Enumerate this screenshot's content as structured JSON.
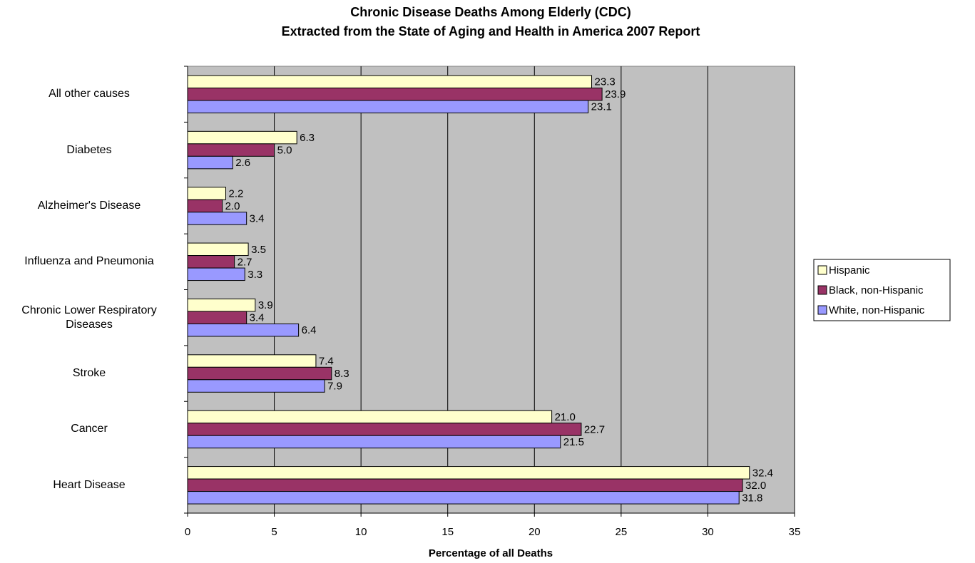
{
  "chart_data": {
    "type": "hbar",
    "title": "Chronic Disease Deaths Among Elderly (CDC)",
    "subtitle": "Extracted from the State of Aging and Health in America 2007 Report",
    "x_label": "Percentage of all Deaths",
    "categories": [
      "All other causes",
      "Diabetes",
      "Alzheimer's Disease",
      "Influenza and Pneumonia",
      "Chronic Lower Respiratory\nDiseases",
      "Stroke",
      "Cancer",
      "Heart Disease"
    ],
    "series": [
      {
        "name": "Hispanic",
        "color": "#ffffcc",
        "values": [
          23.3,
          6.3,
          2.2,
          3.5,
          3.9,
          7.4,
          21.0,
          32.4
        ],
        "value_labels": [
          "23.3",
          "6.3",
          "2.2",
          "3.5",
          "3.9",
          "7.4",
          "21.0",
          "32.4"
        ]
      },
      {
        "name": "Black, non-Hispanic",
        "color": "#993366",
        "values": [
          23.9,
          5.0,
          2.0,
          2.7,
          3.4,
          8.3,
          22.7,
          32.0
        ],
        "value_labels": [
          "23.9",
          "5.0",
          "2.0",
          "2.7",
          "3.4",
          "8.3",
          "22.7",
          "32.0"
        ]
      },
      {
        "name": "White, non-Hispanic",
        "color": "#9999ff",
        "values": [
          23.1,
          2.6,
          3.4,
          3.3,
          6.4,
          7.9,
          21.5,
          31.8
        ],
        "value_labels": [
          "23.1",
          "2.6",
          "3.4",
          "3.3",
          "6.4",
          "7.9",
          "21.5",
          "31.8"
        ]
      }
    ],
    "xlim": [
      0,
      35
    ],
    "xticks": [
      0,
      5,
      10,
      15,
      20,
      25,
      30,
      35
    ],
    "grid": true,
    "plot_background": "#c0c0c0",
    "legend": "right"
  }
}
